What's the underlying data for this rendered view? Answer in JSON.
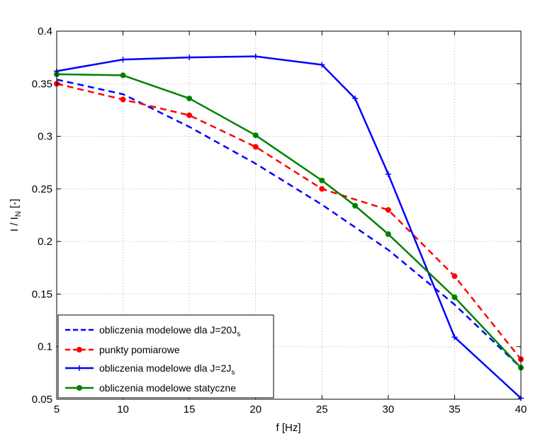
{
  "chart_data": {
    "type": "line",
    "xlabel": "f [Hz]",
    "ylabel_main": "I / I",
    "ylabel_sub": "N",
    "ylabel_suffix": " [-]",
    "xlim": [
      5,
      40
    ],
    "ylim": [
      0.05,
      0.4
    ],
    "x_ticks": [
      5,
      10,
      15,
      20,
      25,
      30,
      35,
      40
    ],
    "y_ticks": [
      0.05,
      0.1,
      0.15,
      0.2,
      0.25,
      0.3,
      0.35,
      0.4
    ],
    "grid": true,
    "legend_position": "bottom-left",
    "series": [
      {
        "name": "obliczenia modelowe dla J=20J",
        "name_sub": "s",
        "color": "#0000ff",
        "style": "dashed",
        "marker": "none",
        "x": [
          5,
          10,
          15,
          20,
          25,
          30,
          35,
          40
        ],
        "y": [
          0.354,
          0.34,
          0.309,
          0.274,
          0.235,
          0.192,
          0.14,
          0.08
        ]
      },
      {
        "name": "punkty pomiarowe",
        "color": "#ff0000",
        "style": "dashed",
        "marker": "circle",
        "x": [
          5,
          10,
          15,
          20,
          25,
          30,
          35,
          40
        ],
        "y": [
          0.35,
          0.335,
          0.32,
          0.29,
          0.25,
          0.23,
          0.167,
          0.088
        ]
      },
      {
        "name": "obliczenia modelowe dla J=2J",
        "name_sub": "s",
        "color": "#0000ff",
        "style": "solid",
        "marker": "plus",
        "x": [
          5,
          10,
          15,
          20,
          25,
          27.5,
          30,
          35,
          40
        ],
        "y": [
          0.362,
          0.373,
          0.375,
          0.376,
          0.368,
          0.336,
          0.264,
          0.109,
          0.051
        ]
      },
      {
        "name": "obliczenia modelowe statyczne",
        "color": "#008000",
        "style": "solid",
        "marker": "circle",
        "x": [
          5,
          10,
          15,
          20,
          25,
          27.5,
          30,
          35,
          40
        ],
        "y": [
          0.359,
          0.358,
          0.336,
          0.301,
          0.258,
          0.234,
          0.207,
          0.147,
          0.08
        ]
      }
    ]
  }
}
